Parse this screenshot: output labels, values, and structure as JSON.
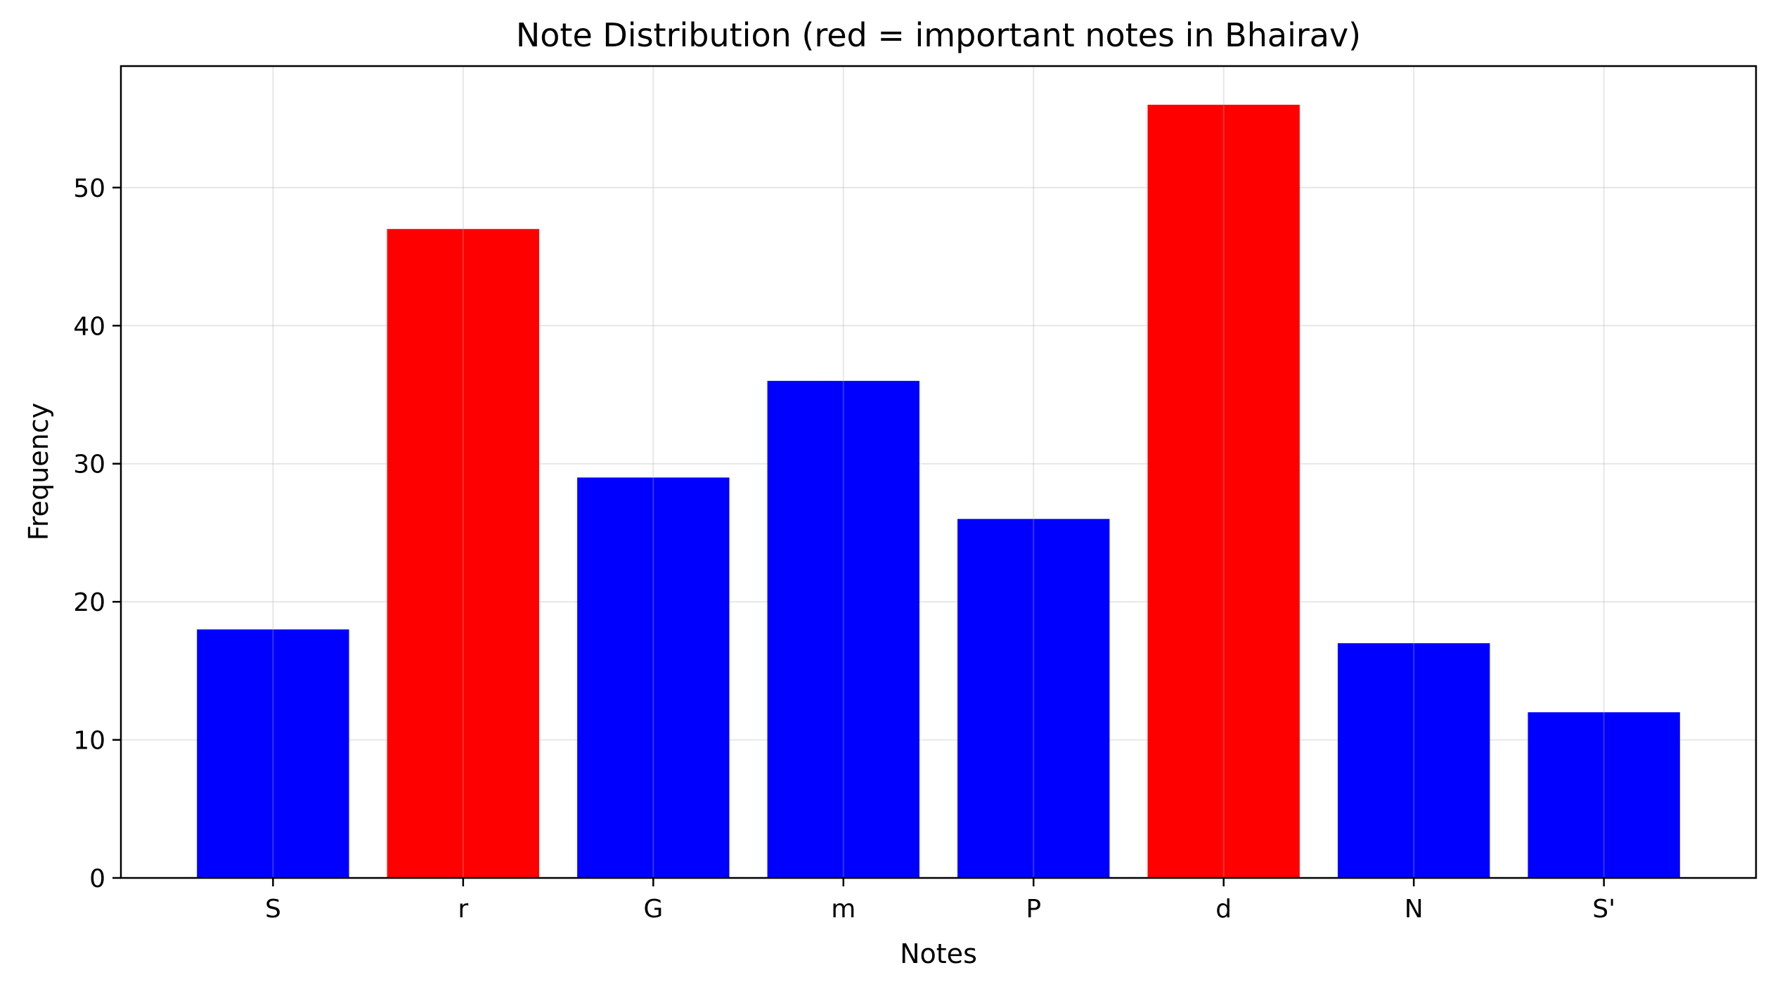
{
  "chart_data": {
    "type": "bar",
    "title": "Note Distribution (red = important notes in Bhairav)",
    "xlabel": "Notes",
    "ylabel": "Frequency",
    "categories": [
      "S",
      "r",
      "G",
      "m",
      "P",
      "d",
      "N",
      "S'"
    ],
    "values": [
      18,
      47,
      29,
      36,
      26,
      56,
      17,
      12
    ],
    "bar_colors": [
      "#0000ff",
      "#ff0000",
      "#0000ff",
      "#0000ff",
      "#0000ff",
      "#ff0000",
      "#0000ff",
      "#0000ff"
    ],
    "ylim": [
      0,
      58.8
    ],
    "yticks": [
      0,
      10,
      20,
      30,
      40,
      50
    ],
    "grid": true,
    "legend": "none"
  }
}
